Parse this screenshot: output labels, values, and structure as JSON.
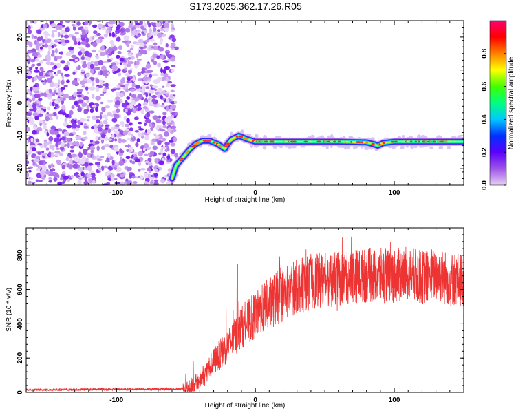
{
  "chart_data": [
    {
      "type": "heatmap",
      "title": "S173.2025.362.17.26.R05",
      "xlabel": "Height of straight line (km)",
      "ylabel": "Frequency (Hz)",
      "xlim": [
        -165,
        150
      ],
      "ylim": [
        -25,
        25
      ],
      "x_ticks": [
        -100,
        0,
        100
      ],
      "x_tick_labels": [
        "-100",
        "0",
        "100"
      ],
      "y_ticks": [
        -20,
        -10,
        0,
        10,
        20
      ],
      "y_tick_labels": [
        "-20",
        "-10",
        "0",
        "10",
        "20"
      ],
      "ridge": {
        "x": [
          -60,
          -57,
          -52,
          -47,
          -43,
          -38,
          -33,
          -27,
          -22,
          -20,
          -17,
          -12,
          -6,
          0,
          20,
          40,
          60,
          80,
          85,
          88,
          92,
          100,
          120,
          150
        ],
        "y": [
          -23,
          -19,
          -16.5,
          -14,
          -12.5,
          -11.5,
          -11.5,
          -12.5,
          -14,
          -12.5,
          -11,
          -10,
          -11,
          -11.8,
          -11.8,
          -11.8,
          -11.8,
          -12,
          -12.5,
          -13,
          -12.2,
          -11.8,
          -11.8,
          -11.8
        ]
      },
      "noise_region_x": [
        -165,
        -57
      ],
      "colorbar": {
        "label": "Normalized spectral amplitude",
        "range": [
          0,
          1
        ],
        "ticks": [
          0.0,
          0.2,
          0.4,
          0.6,
          0.8
        ],
        "tick_labels": [
          "0.0",
          "0.2",
          "0.4",
          "0.6",
          "0.8"
        ],
        "colors": [
          "#e6d0f5",
          "#a055e8",
          "#5a00ff",
          "#0030ff",
          "#00c8ff",
          "#00ff80",
          "#40ff00",
          "#ffff00",
          "#ff8000",
          "#ff0000",
          "#ff0070"
        ]
      }
    },
    {
      "type": "line",
      "xlabel": "Height of straight line (km)",
      "ylabel": "SNR (10 * v/v)",
      "xlim": [
        -165,
        150
      ],
      "ylim": [
        0,
        960
      ],
      "x_ticks": [
        -100,
        0,
        100
      ],
      "x_tick_labels": [
        "-100",
        "0",
        "100"
      ],
      "y_ticks": [
        0,
        200,
        400,
        600,
        800
      ],
      "y_tick_labels": [
        "0",
        "200",
        "400",
        "600",
        "800"
      ],
      "color": "#ee3333",
      "envelope": {
        "x": [
          -165,
          -50,
          -40,
          -30,
          -20,
          -14,
          -10,
          0,
          10,
          20,
          30,
          40,
          50,
          60,
          70,
          80,
          90,
          100,
          110,
          120,
          130,
          140,
          150
        ],
        "y": [
          15,
          20,
          70,
          180,
          270,
          330,
          380,
          450,
          520,
          570,
          620,
          640,
          660,
          660,
          680,
          680,
          680,
          680,
          690,
          670,
          690,
          660,
          660
        ]
      },
      "spike_x": -13,
      "spike_y": 745
    }
  ]
}
